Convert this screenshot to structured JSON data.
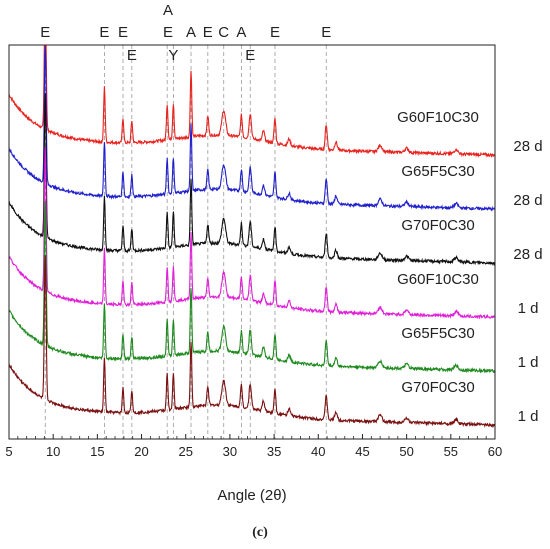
{
  "chart_data": {
    "type": "line",
    "xlabel": "Angle (2θ)",
    "xlim": [
      5,
      60
    ],
    "x_ticks": [
      5,
      10,
      15,
      20,
      25,
      30,
      35,
      40,
      45,
      50,
      55,
      60
    ],
    "caption": "(c)",
    "phase_lines": [
      9.1,
      15.8,
      17.9,
      18.9,
      22.9,
      23.6,
      25.6,
      27.5,
      29.3,
      31.3,
      32.3,
      35.1,
      40.9
    ],
    "phase_labels": [
      {
        "text": "E",
        "x": 9.1,
        "row": 1
      },
      {
        "text": "E",
        "x": 15.8,
        "row": 1
      },
      {
        "text": "E",
        "x": 17.9,
        "row": 1
      },
      {
        "text": "E",
        "x": 18.9,
        "row": 2
      },
      {
        "text": "A",
        "x": 23.0,
        "row": 0
      },
      {
        "text": "E",
        "x": 23.0,
        "row": 1
      },
      {
        "text": "Y",
        "x": 23.6,
        "row": 2
      },
      {
        "text": "A",
        "x": 25.6,
        "row": 1
      },
      {
        "text": "E",
        "x": 27.5,
        "row": 1
      },
      {
        "text": "C",
        "x": 29.3,
        "row": 1
      },
      {
        "text": "A",
        "x": 31.3,
        "row": 1
      },
      {
        "text": "E",
        "x": 32.3,
        "row": 2
      },
      {
        "text": "E",
        "x": 35.1,
        "row": 1
      },
      {
        "text": "E",
        "x": 40.9,
        "row": 1
      }
    ],
    "series": [
      {
        "name": "G60F10C30",
        "age": "28 d",
        "color": "#e8221d",
        "offset": 5
      },
      {
        "name": "G65F5C30",
        "age": "28 d",
        "color": "#1f1fcc",
        "offset": 4
      },
      {
        "name": "G70F0C30",
        "age": "28 d",
        "color": "#111111",
        "offset": 3
      },
      {
        "name": "G60F10C30",
        "age": "1 d",
        "color": "#e020d8",
        "offset": 2
      },
      {
        "name": "G65F5C30",
        "age": "1 d",
        "color": "#1e8a1e",
        "offset": 1
      },
      {
        "name": "G70F0C30",
        "age": "1 d",
        "color": "#7a1010",
        "offset": 0
      }
    ],
    "peaks": [
      {
        "x": 9.1,
        "h": 2.6,
        "w": 0.14
      },
      {
        "x": 15.8,
        "h": 1.0,
        "w": 0.12
      },
      {
        "x": 17.9,
        "h": 0.45,
        "w": 0.12
      },
      {
        "x": 18.9,
        "h": 0.4,
        "w": 0.12
      },
      {
        "x": 22.9,
        "h": 0.65,
        "w": 0.12
      },
      {
        "x": 23.6,
        "h": 0.65,
        "w": 0.12
      },
      {
        "x": 25.6,
        "h": 1.2,
        "w": 0.12
      },
      {
        "x": 27.5,
        "h": 0.35,
        "w": 0.14
      },
      {
        "x": 29.3,
        "h": 0.45,
        "w": 0.3
      },
      {
        "x": 31.3,
        "h": 0.4,
        "w": 0.14
      },
      {
        "x": 32.3,
        "h": 0.45,
        "w": 0.18
      },
      {
        "x": 33.8,
        "h": 0.18,
        "w": 0.18
      },
      {
        "x": 35.1,
        "h": 0.45,
        "w": 0.14
      },
      {
        "x": 36.7,
        "h": 0.12,
        "w": 0.2
      },
      {
        "x": 40.9,
        "h": 0.45,
        "w": 0.16
      },
      {
        "x": 42.0,
        "h": 0.15,
        "w": 0.2
      },
      {
        "x": 47.0,
        "h": 0.12,
        "w": 0.3
      },
      {
        "x": 50.0,
        "h": 0.08,
        "w": 0.3
      },
      {
        "x": 55.6,
        "h": 0.08,
        "w": 0.3
      }
    ]
  }
}
